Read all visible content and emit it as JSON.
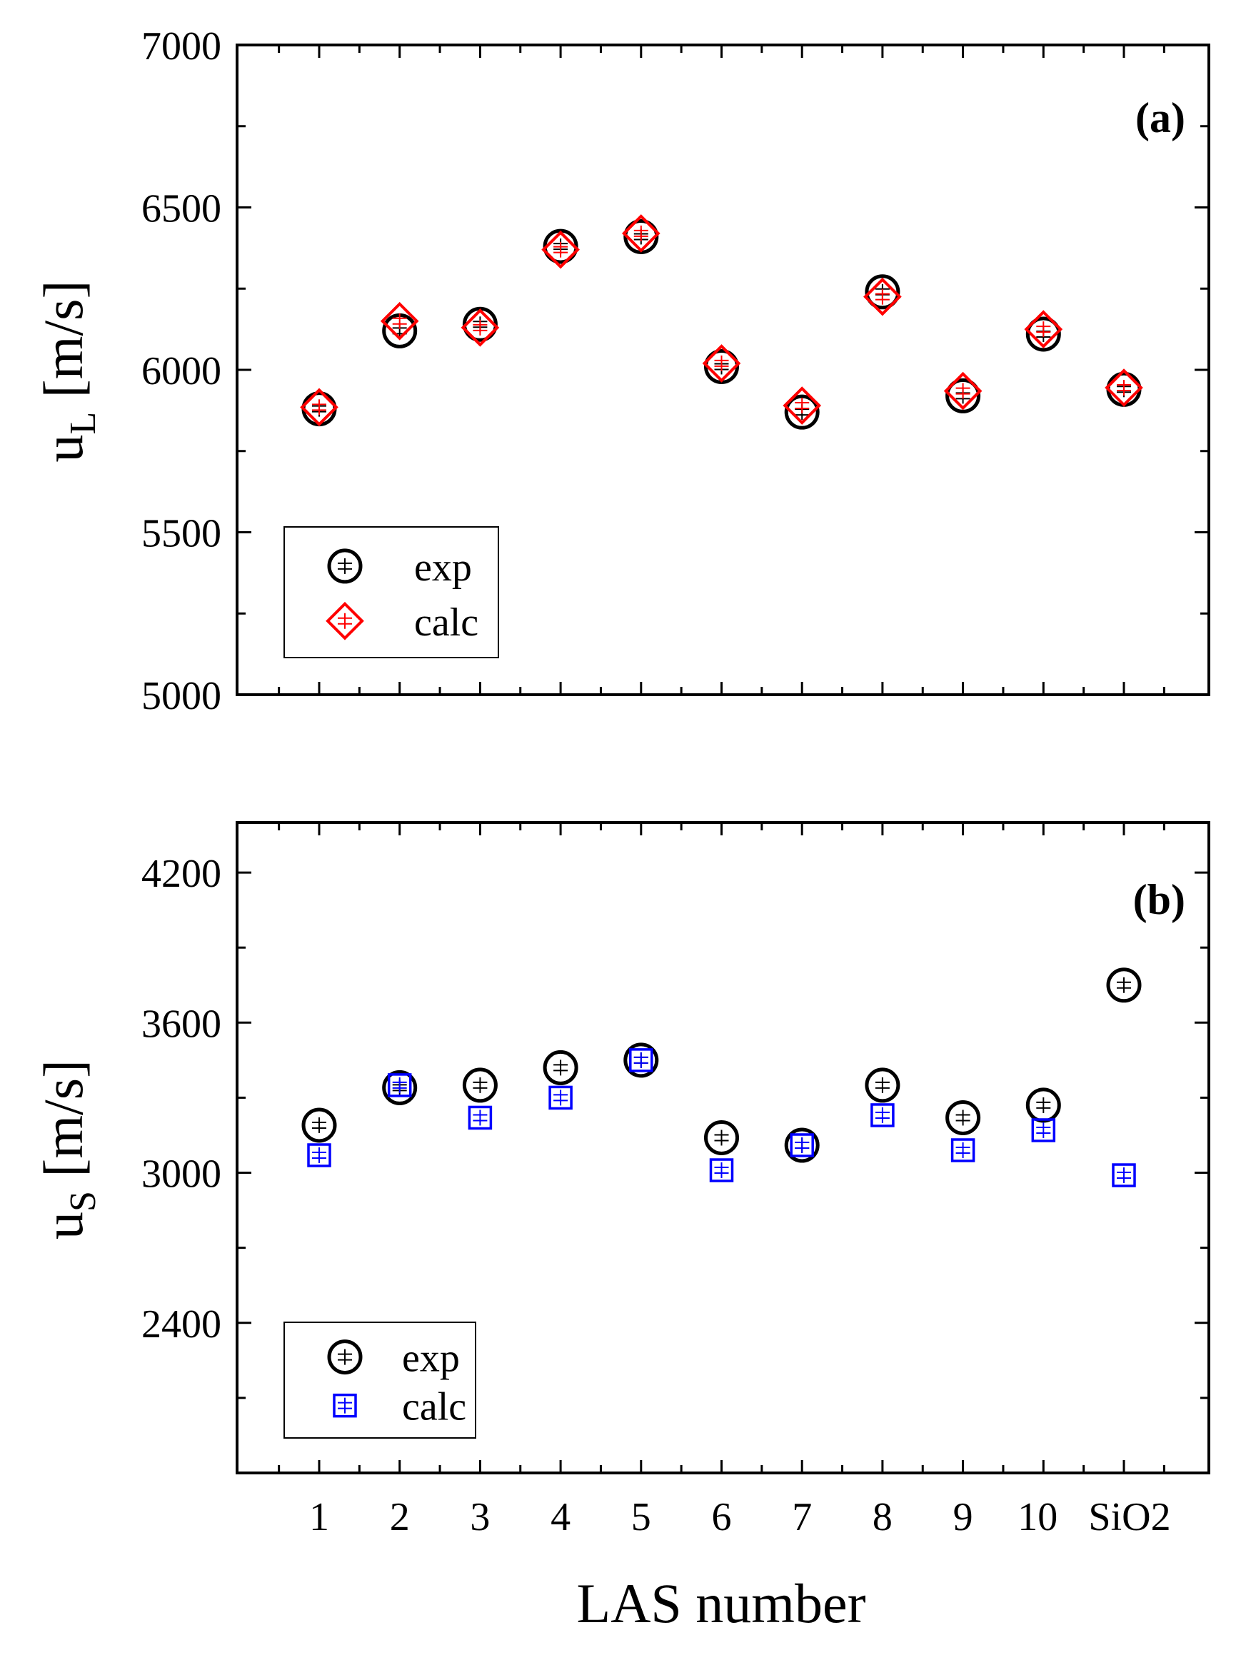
{
  "chart_data": [
    {
      "type": "scatter",
      "panel_label": "(a)",
      "ylabel": "u",
      "ylabel_sub": "L",
      "ylabel_unit": " [m/s]",
      "ylim": [
        5000,
        7000
      ],
      "yticks": [
        5000,
        5500,
        6000,
        6500,
        7000
      ],
      "categories": [
        "1",
        "2",
        "3",
        "4",
        "5",
        "6",
        "7",
        "8",
        "9",
        "10",
        "SiO2"
      ],
      "series": [
        {
          "name": "exp",
          "marker": "circle",
          "color": "#000000",
          "values": [
            5880,
            6120,
            6140,
            6380,
            6410,
            6010,
            5870,
            6240,
            5920,
            6110,
            5940
          ]
        },
        {
          "name": "calc",
          "marker": "diamond",
          "color": "#ff0000",
          "values": [
            5885,
            6150,
            6130,
            6370,
            6420,
            6020,
            5890,
            6225,
            5935,
            6125,
            5945
          ]
        }
      ],
      "legend": "bottom-left"
    },
    {
      "type": "scatter",
      "panel_label": "(b)",
      "ylabel": "u",
      "ylabel_sub": "S",
      "ylabel_unit": " [m/s]",
      "ylim": [
        1800,
        4400
      ],
      "yticks": [
        2400,
        3000,
        3600,
        4200
      ],
      "xlabel": "LAS number",
      "categories": [
        "1",
        "2",
        "3",
        "4",
        "5",
        "6",
        "7",
        "8",
        "9",
        "10",
        "SiO2"
      ],
      "series": [
        {
          "name": "exp",
          "marker": "circle",
          "color": "#000000",
          "values": [
            3190,
            3340,
            3350,
            3420,
            3450,
            3140,
            3110,
            3350,
            3220,
            3270,
            3750
          ]
        },
        {
          "name": "calc",
          "marker": "square",
          "color": "#0000ff",
          "values": [
            3070,
            3350,
            3220,
            3300,
            3450,
            3010,
            3110,
            3230,
            3090,
            3170,
            2990
          ]
        }
      ],
      "legend": "bottom-left"
    }
  ]
}
